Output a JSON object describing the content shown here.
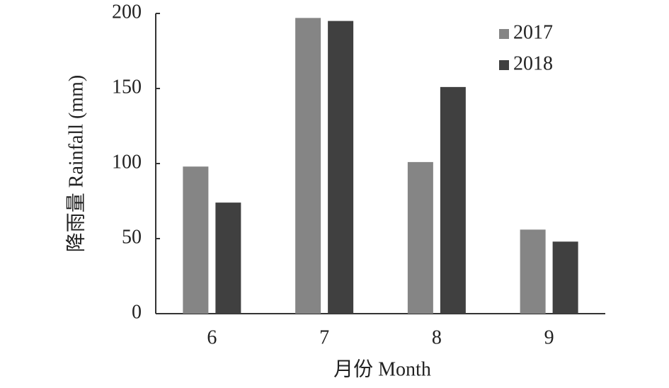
{
  "chart_data": {
    "type": "bar",
    "x_label": "月份 Month",
    "y_label": "降雨量 Rainfall (mm)",
    "categories": [
      "6",
      "7",
      "8",
      "9"
    ],
    "series": [
      {
        "name": "2017",
        "color": "#858585",
        "values": [
          98,
          197,
          101,
          56
        ]
      },
      {
        "name": "2018",
        "color": "#404040",
        "values": [
          74,
          195,
          151,
          48
        ]
      }
    ],
    "ylim": [
      0,
      200
    ],
    "yticks": [
      0,
      50,
      100,
      150,
      200
    ],
    "grid": false,
    "legend": "upper right"
  }
}
